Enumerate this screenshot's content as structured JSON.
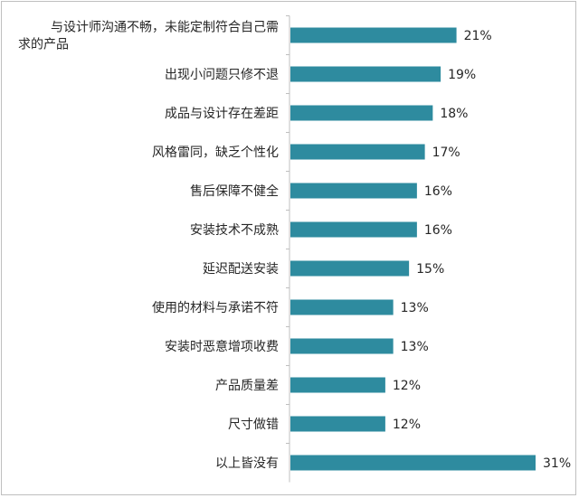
{
  "chart_data": {
    "type": "bar",
    "orientation": "horizontal",
    "categories": [
      "与设计师沟通不畅，未能定制符合自己需求的产品",
      "出现小问题只修不退",
      "成品与设计存在差距",
      "风格雷同，缺乏个性化",
      "售后保障不健全",
      "安装技术不成熟",
      "延迟配送安装",
      "使用的材料与承诺不符",
      "安装时恶意增项收费",
      "产品质量差",
      "尺寸做错",
      "以上皆没有"
    ],
    "category_lines": [
      [
        "与设计师沟通不畅，未能定制符合自己需",
        "求的产品"
      ],
      [
        "出现小问题只修不退"
      ],
      [
        "成品与设计存在差距"
      ],
      [
        "风格雷同，缺乏个性化"
      ],
      [
        "售后保障不健全"
      ],
      [
        "安装技术不成熟"
      ],
      [
        "延迟配送安装"
      ],
      [
        "使用的材料与承诺不符"
      ],
      [
        "安装时恶意增项收费"
      ],
      [
        "产品质量差"
      ],
      [
        "尺寸做错"
      ],
      [
        "以上皆没有"
      ]
    ],
    "values": [
      21,
      19,
      18,
      17,
      16,
      16,
      15,
      13,
      13,
      12,
      12,
      31
    ],
    "value_labels": [
      "21%",
      "19%",
      "18%",
      "17%",
      "16%",
      "16%",
      "15%",
      "13%",
      "13%",
      "12%",
      "12%",
      "31%"
    ],
    "unit": "%",
    "xlim": [
      0,
      31
    ],
    "bar_color": "#2E8B9F",
    "grid": false,
    "legend": "none"
  }
}
